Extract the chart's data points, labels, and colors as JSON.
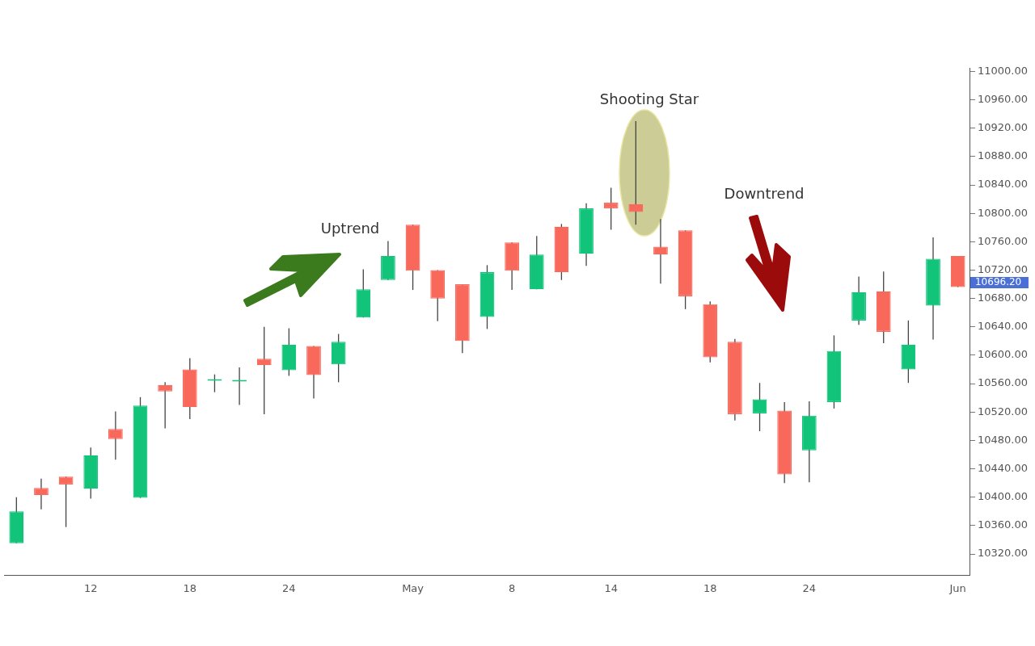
{
  "chart_data": {
    "type": "candlestick",
    "categories": [
      null,
      null,
      null,
      "12",
      null,
      null,
      null,
      "18",
      null,
      null,
      null,
      "24",
      null,
      null,
      null,
      null,
      "May",
      null,
      null,
      null,
      "8",
      null,
      null,
      null,
      "14",
      null,
      null,
      null,
      "18",
      null,
      null,
      null,
      "24",
      null,
      null,
      null,
      null,
      null,
      "Jun"
    ],
    "ohlc": [
      [
        10335,
        10400,
        10335,
        10380
      ],
      [
        10413,
        10426,
        10383,
        10403
      ],
      [
        10429,
        10429,
        10358,
        10418
      ],
      [
        10412,
        10470,
        10398,
        10459
      ],
      [
        10496,
        10521,
        10453,
        10482
      ],
      [
        10399,
        10541,
        10399,
        10529
      ],
      [
        10558,
        10562,
        10497,
        10549
      ],
      [
        10580,
        10596,
        10510,
        10527
      ],
      [
        10564,
        10573,
        10548,
        10565
      ],
      [
        10563,
        10583,
        10530,
        10564
      ],
      [
        10595,
        10640,
        10517,
        10586
      ],
      [
        10579,
        10638,
        10571,
        10615
      ],
      [
        10613,
        10613,
        10539,
        10572
      ],
      [
        10587,
        10630,
        10562,
        10619
      ],
      [
        10653,
        10721,
        10653,
        10693
      ],
      [
        10706,
        10761,
        10706,
        10740
      ],
      [
        10784,
        10784,
        10692,
        10719
      ],
      [
        10720,
        10720,
        10648,
        10680
      ],
      [
        10700,
        10700,
        10603,
        10620
      ],
      [
        10654,
        10727,
        10637,
        10717
      ],
      [
        10759,
        10759,
        10692,
        10719
      ],
      [
        10693,
        10768,
        10693,
        10742
      ],
      [
        10781,
        10785,
        10706,
        10717
      ],
      [
        10743,
        10814,
        10726,
        10807
      ],
      [
        10815,
        10836,
        10777,
        10807
      ],
      [
        10813,
        10930,
        10784,
        10802
      ],
      [
        10753,
        10792,
        10701,
        10742
      ],
      [
        10776,
        10776,
        10665,
        10683
      ],
      [
        10672,
        10676,
        10590,
        10597
      ],
      [
        10619,
        10623,
        10508,
        10517
      ],
      [
        10518,
        10561,
        10493,
        10538
      ],
      [
        10522,
        10534,
        10420,
        10432
      ],
      [
        10466,
        10535,
        10421,
        10515
      ],
      [
        10534,
        10628,
        10525,
        10606
      ],
      [
        10649,
        10711,
        10643,
        10689
      ],
      [
        10690,
        10718,
        10617,
        10633
      ],
      [
        10580,
        10649,
        10561,
        10615
      ],
      [
        10670,
        10766,
        10622,
        10736
      ],
      [
        10740,
        10740,
        10696.2,
        10696.2
      ]
    ],
    "colors": [
      "#12c47a",
      "#f8695c",
      "#f8695c",
      "#12c47a",
      "#f8695c",
      "#12c47a",
      "#f8695c",
      "#f8695c",
      "#12c47a",
      "#12c47a",
      "#f8695c",
      "#12c47a",
      "#f8695c",
      "#12c47a",
      "#12c47a",
      "#12c47a",
      "#f8695c",
      "#f8695c",
      "#f8695c",
      "#12c47a",
      "#f8695c",
      "#12c47a",
      "#f8695c",
      "#12c47a",
      "#f8695c",
      "#f8695c",
      "#f8695c",
      "#f8695c",
      "#f8695c",
      "#f8695c",
      "#12c47a",
      "#f8695c",
      "#12c47a",
      "#12c47a",
      "#12c47a",
      "#f8695c",
      "#12c47a",
      "#12c47a",
      "#f8695c"
    ],
    "ylim": [
      10290,
      11005
    ],
    "yticks": [
      {
        "value": 10320,
        "label": "10320.00"
      },
      {
        "value": 10360,
        "label": "10360.00"
      },
      {
        "value": 10400,
        "label": "10400.00"
      },
      {
        "value": 10440,
        "label": "10440.00"
      },
      {
        "value": 10480,
        "label": "10480.00"
      },
      {
        "value": 10520,
        "label": "10520.00"
      },
      {
        "value": 10560,
        "label": "10560.00"
      },
      {
        "value": 10600,
        "label": "10600.00"
      },
      {
        "value": 10640,
        "label": "10640.00"
      },
      {
        "value": 10680,
        "label": "10680.00"
      },
      {
        "value": 10720,
        "label": "10720.00"
      },
      {
        "value": 10760,
        "label": "10760.00"
      },
      {
        "value": 10800,
        "label": "10800.00"
      },
      {
        "value": 10840,
        "label": "10840.00"
      },
      {
        "value": 10880,
        "label": "10880.00"
      },
      {
        "value": 10920,
        "label": "10920.00"
      },
      {
        "value": 10960,
        "label": "10960.00"
      },
      {
        "value": 11000,
        "label": "11000.00"
      }
    ],
    "annotations": [
      "Uptrend",
      "Shooting Star",
      "Downtrend",
      "10696.20"
    ],
    "grid": false,
    "legend": false
  }
}
